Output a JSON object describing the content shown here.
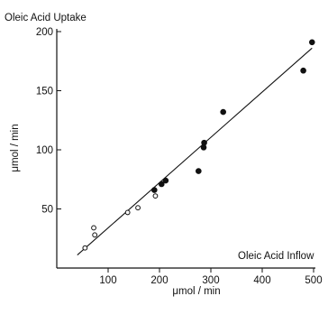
{
  "chart_data": {
    "type": "scatter",
    "title": "Oleic Acid Uptake",
    "annotation": "Oleic Acid Inflow",
    "xlabel": "μmol / min",
    "ylabel": "μmol / min",
    "xlim": [
      0,
      500
    ],
    "ylim": [
      0,
      200
    ],
    "x_ticks": [
      100,
      200,
      300,
      400,
      500
    ],
    "y_ticks": [
      50,
      100,
      150,
      200
    ],
    "grid": false,
    "series": [
      {
        "marker": "open-circle",
        "points": [
          [
            55,
            17
          ],
          [
            72,
            34
          ],
          [
            74,
            28
          ],
          [
            138,
            47
          ],
          [
            158,
            51
          ],
          [
            192,
            61
          ]
        ]
      },
      {
        "marker": "filled-circle",
        "points": [
          [
            190,
            66
          ],
          [
            204,
            71
          ],
          [
            212,
            74
          ],
          [
            276,
            82
          ],
          [
            286,
            102
          ],
          [
            287,
            106
          ],
          [
            324,
            132
          ],
          [
            480,
            167
          ],
          [
            497,
            191
          ]
        ]
      }
    ],
    "fit_line": {
      "x": [
        40,
        497
      ],
      "y": [
        11,
        186
      ]
    }
  }
}
